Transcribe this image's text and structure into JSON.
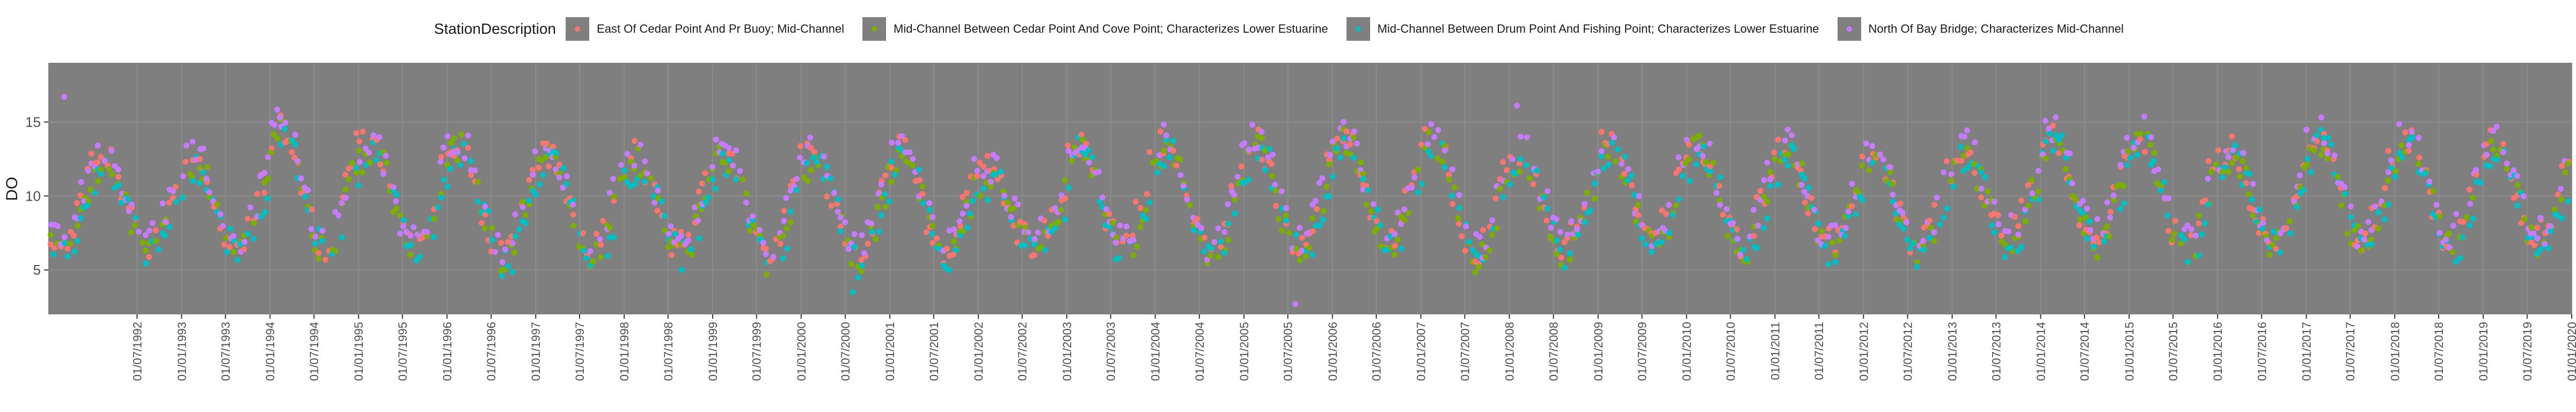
{
  "chart_data": {
    "type": "scatter",
    "ylabel": "DO",
    "xlabel": "",
    "legend_title": "StationDescription",
    "legend_position": "top",
    "ylim": [
      2,
      19
    ],
    "yticks": [
      5,
      10,
      15
    ],
    "xlim": [
      "1991-07-01",
      "2020-01-01"
    ],
    "grid": true,
    "panel_background": "#7f7f7f",
    "grid_color": "#8c8c8c",
    "xtick_labels": [
      "01/07/1992",
      "01/01/1993",
      "01/07/1993",
      "01/01/1994",
      "01/07/1994",
      "01/01/1995",
      "01/07/1995",
      "01/01/1996",
      "01/07/1996",
      "01/01/1997",
      "01/07/1997",
      "01/01/1998",
      "01/07/1998",
      "01/01/1999",
      "01/07/1999",
      "01/01/2000",
      "01/07/2000",
      "01/01/2001",
      "01/07/2001",
      "01/01/2002",
      "01/07/2002",
      "01/01/2003",
      "01/07/2003",
      "01/01/2004",
      "01/07/2004",
      "01/01/2005",
      "01/07/2005",
      "01/01/2006",
      "01/07/2006",
      "01/01/2007",
      "01/07/2007",
      "01/01/2008",
      "01/07/2008",
      "01/01/2009",
      "01/07/2009",
      "01/01/2010",
      "01/07/2010",
      "01/01/2011",
      "01/07/2011",
      "01/01/2012",
      "01/07/2012",
      "01/01/2013",
      "01/07/2013",
      "01/01/2014",
      "01/07/2014",
      "01/01/2015",
      "01/07/2015",
      "01/01/2016",
      "01/07/2016",
      "01/01/2017",
      "01/07/2017",
      "01/01/2018",
      "01/07/2018",
      "01/01/2019",
      "01/07/2019",
      "01/01/2020"
    ],
    "yearly_peak_DO": [
      [
        1992,
        12.5
      ],
      [
        1993,
        12.5
      ],
      [
        1994,
        14.5
      ],
      [
        1995,
        13.5
      ],
      [
        1996,
        13.5
      ],
      [
        1997,
        13.0
      ],
      [
        1998,
        12.5
      ],
      [
        1999,
        13.0
      ],
      [
        2000,
        12.5
      ],
      [
        2001,
        13.0
      ],
      [
        2002,
        11.5
      ],
      [
        2003,
        13.5
      ],
      [
        2004,
        13.5
      ],
      [
        2005,
        13.5
      ],
      [
        2006,
        14.0
      ],
      [
        2007,
        14.0
      ],
      [
        2008,
        13.0
      ],
      [
        2009,
        13.5
      ],
      [
        2010,
        13.5
      ],
      [
        2011,
        13.0
      ],
      [
        2012,
        12.5
      ],
      [
        2013,
        13.0
      ],
      [
        2014,
        14.0
      ],
      [
        2015,
        14.0
      ],
      [
        2016,
        13.0
      ],
      [
        2017,
        14.0
      ],
      [
        2018,
        14.0
      ],
      [
        2019,
        13.5
      ]
    ],
    "yearly_trough_DO": [
      [
        1992,
        6.5
      ],
      [
        1993,
        6.5
      ],
      [
        1994,
        6.5
      ],
      [
        1995,
        6.5
      ],
      [
        1996,
        6.0
      ],
      [
        1997,
        6.0
      ],
      [
        1998,
        6.5
      ],
      [
        1999,
        6.0
      ],
      [
        2000,
        6.0
      ],
      [
        2001,
        6.0
      ],
      [
        2002,
        6.5
      ],
      [
        2003,
        6.5
      ],
      [
        2004,
        6.0
      ],
      [
        2005,
        6.5
      ],
      [
        2006,
        7.0
      ],
      [
        2007,
        6.0
      ],
      [
        2008,
        6.5
      ],
      [
        2009,
        7.0
      ],
      [
        2010,
        6.5
      ],
      [
        2011,
        6.5
      ],
      [
        2012,
        6.5
      ],
      [
        2013,
        7.0
      ],
      [
        2014,
        7.0
      ],
      [
        2015,
        6.5
      ],
      [
        2016,
        7.0
      ],
      [
        2017,
        7.0
      ],
      [
        2018,
        7.0
      ],
      [
        2019,
        7.0
      ]
    ],
    "notable_points": [
      {
        "x": "1991-09-05",
        "y": 16.7,
        "series": 3
      },
      {
        "x": "2000-08-01",
        "y": 3.5,
        "series": 2
      },
      {
        "x": "2005-08-01",
        "y": 2.7,
        "series": 3
      },
      {
        "x": "2008-02-01",
        "y": 16.1,
        "series": 3
      },
      {
        "x": "1994-02-10",
        "y": 15.3,
        "series": 3
      }
    ],
    "series": [
      {
        "name": "East Of Cedar Point And Pr Buoy; Mid-Channel",
        "color": "#f8766d",
        "phase_days": 0,
        "offset": 0.2
      },
      {
        "name": "Mid-Channel Between Cedar Point And Cove Point; Characterizes Lower Estuarine",
        "color": "#7cae00",
        "phase_days": 10,
        "offset": -0.3
      },
      {
        "name": "Mid-Channel Between Drum Point And Fishing Point; Characterizes Lower Estuarine",
        "color": "#00bfc4",
        "phase_days": 20,
        "offset": -0.5
      },
      {
        "name": "North Of Bay Bridge; Characterizes Mid-Channel",
        "color": "#c77cff",
        "phase_days": 5,
        "offset": 0.5
      }
    ]
  }
}
